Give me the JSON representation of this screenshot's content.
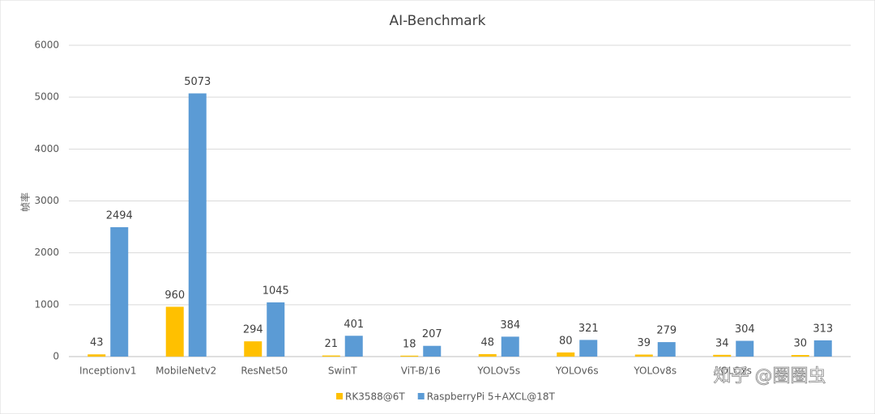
{
  "chart_data": {
    "type": "bar",
    "title": "AI-Benchmark",
    "y_label": "帧率",
    "categories": [
      "Inceptionv1",
      "MobileNetv2",
      "ResNet50",
      "SwinT",
      "ViT-B/16",
      "YOLOv5s",
      "YOLOv6s",
      "YOLOv8s",
      "YOLOxs",
      null
    ],
    "series": [
      {
        "name": "RK3588@6T",
        "color": "#FFC000",
        "values": [
          43,
          960,
          294,
          21,
          18,
          48,
          80,
          39,
          34,
          30
        ]
      },
      {
        "name": "RaspberryPi 5+AXCL@18T",
        "color": "#5B9BD5",
        "values": [
          2494,
          5073,
          1045,
          401,
          207,
          384,
          321,
          279,
          304,
          313
        ]
      }
    ],
    "ylim": [
      0,
      6000
    ],
    "yticks": [
      0,
      1000,
      2000,
      3000,
      4000,
      5000,
      6000
    ],
    "grid": true,
    "legend": "bottom",
    "watermark": "知乎 @圈圈虫"
  }
}
